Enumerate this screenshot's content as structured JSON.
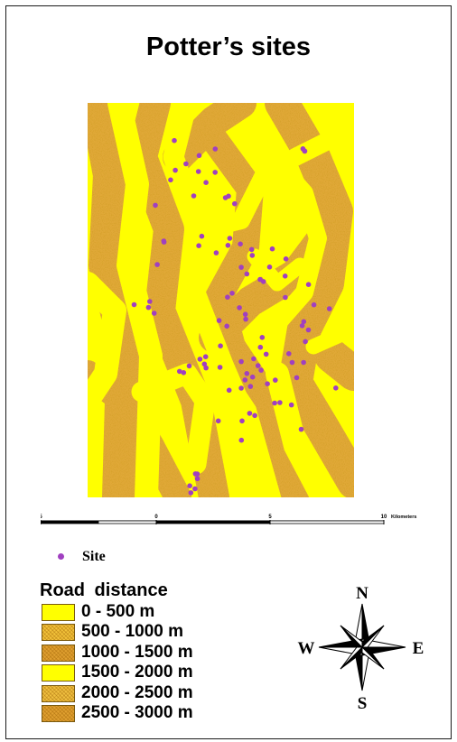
{
  "title": "Potter’s sites",
  "map": {
    "colors": {
      "near": "#ffff00",
      "far": "#e0a838",
      "site": "#a040c0"
    },
    "sites_legend_label": "Site"
  },
  "scale": {
    "labels": [
      "5",
      "0",
      "5",
      "10"
    ],
    "unit": "Kilometers"
  },
  "legend": {
    "title": "Road distance",
    "items": [
      {
        "label": "0 - 500 m",
        "color": "#ffff00"
      },
      {
        "label": "500 - 1000 m",
        "color": "#f2c23a"
      },
      {
        "label": "1000 - 1500 m",
        "color": "#e0a030"
      },
      {
        "label": "1500 - 2000 m",
        "color": "#ffff00"
      },
      {
        "label": "2000 - 2500 m",
        "color": "#f0c040"
      },
      {
        "label": "2500 - 3000 m",
        "color": "#e0a030"
      }
    ]
  },
  "compass": {
    "n": "N",
    "s": "S",
    "e": "E",
    "w": "W"
  }
}
